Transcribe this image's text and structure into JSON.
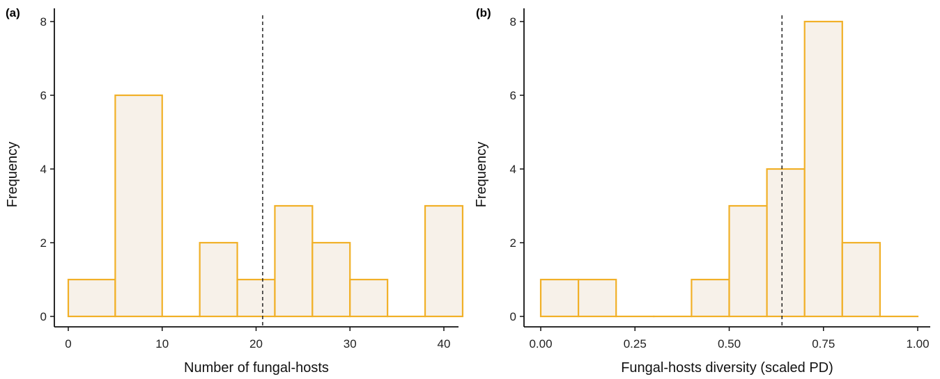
{
  "style": {
    "bar_fill": "#f7f1e9",
    "bar_stroke": "#f1b027",
    "axis_color": "#111111"
  },
  "chart_data": [
    {
      "type": "bar",
      "panel_label": "(a)",
      "xlabel": "Number of fungal-hosts",
      "ylabel": "Frequency",
      "xlim": [
        -2,
        43
      ],
      "ylim": [
        0,
        8.4
      ],
      "x_ticks": [
        0,
        10,
        20,
        30,
        40
      ],
      "x_tick_labels": [
        "0",
        "10",
        "20",
        "30",
        "40"
      ],
      "y_ticks": [
        0,
        2,
        4,
        6,
        8
      ],
      "y_tick_labels": [
        "0",
        "2",
        "4",
        "6",
        "8"
      ],
      "bins": [
        {
          "x0": 0,
          "x1": 5,
          "count": 1
        },
        {
          "x0": 5,
          "x1": 10,
          "count": 6
        },
        {
          "x0": 10,
          "x1": 14,
          "count": 0
        },
        {
          "x0": 14,
          "x1": 18,
          "count": 2
        },
        {
          "x0": 18,
          "x1": 22,
          "count": 1
        },
        {
          "x0": 22,
          "x1": 26,
          "count": 3
        },
        {
          "x0": 26,
          "x1": 30,
          "count": 2
        },
        {
          "x0": 30,
          "x1": 34,
          "count": 1
        },
        {
          "x0": 34,
          "x1": 38,
          "count": 0
        },
        {
          "x0": 38,
          "x1": 42,
          "count": 3
        }
      ],
      "reference_line_x": 20.7
    },
    {
      "type": "bar",
      "panel_label": "(b)",
      "xlabel": "Fungal-hosts diversity (scaled PD)",
      "ylabel": "Frequency",
      "xlim": [
        -0.05,
        1.05
      ],
      "ylim": [
        0,
        8.4
      ],
      "x_ticks": [
        0,
        0.25,
        0.5,
        0.75,
        1.0
      ],
      "x_tick_labels": [
        "0.00",
        "0.25",
        "0.50",
        "0.75",
        "1.00"
      ],
      "y_ticks": [
        0,
        2,
        4,
        6,
        8
      ],
      "y_tick_labels": [
        "0",
        "2",
        "4",
        "6",
        "8"
      ],
      "bins": [
        {
          "x0": 0.0,
          "x1": 0.1,
          "count": 1
        },
        {
          "x0": 0.1,
          "x1": 0.2,
          "count": 1
        },
        {
          "x0": 0.2,
          "x1": 0.3,
          "count": 0
        },
        {
          "x0": 0.3,
          "x1": 0.4,
          "count": 0
        },
        {
          "x0": 0.4,
          "x1": 0.5,
          "count": 1
        },
        {
          "x0": 0.5,
          "x1": 0.6,
          "count": 3
        },
        {
          "x0": 0.6,
          "x1": 0.7,
          "count": 4
        },
        {
          "x0": 0.7,
          "x1": 0.8,
          "count": 8
        },
        {
          "x0": 0.8,
          "x1": 0.9,
          "count": 2
        },
        {
          "x0": 0.9,
          "x1": 1.0,
          "count": 0
        }
      ],
      "reference_line_x": 0.64
    }
  ]
}
